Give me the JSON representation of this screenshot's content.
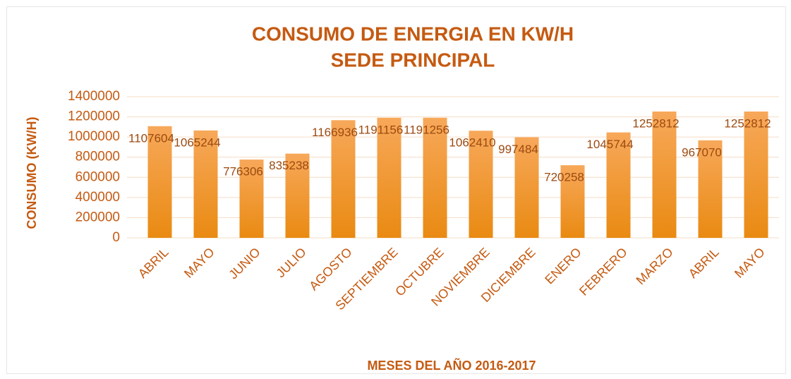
{
  "chart_data": {
    "type": "bar",
    "title": "CONSUMO DE ENERGIA EN KW/H",
    "subtitle": "SEDE PRINCIPAL",
    "x_label": "MESES DEL AÑO 2016-2017",
    "y_label": "CONSUMO (KW/H)",
    "categories": [
      "ABRIL",
      "MAYO",
      "JUNIO",
      "JULIO",
      "AGOSTO",
      "SEPTIEMBRE",
      "OCTUBRE",
      "NOVIEMBRE",
      "DICIEMBRE",
      "ENERO",
      "FEBRERO",
      "MARZO",
      "ABRIL",
      "MAYO"
    ],
    "values": [
      1107604,
      1065244,
      776306,
      835238,
      1166936,
      1191156,
      1191256,
      1062410,
      997484,
      720258,
      1045744,
      1252812,
      967070,
      1252812
    ],
    "color": "#f39a2e",
    "ylim": [
      0,
      1400000
    ],
    "yticks": [
      0,
      200000,
      400000,
      600000,
      800000,
      1000000,
      1200000,
      1400000
    ],
    "grid": true
  }
}
